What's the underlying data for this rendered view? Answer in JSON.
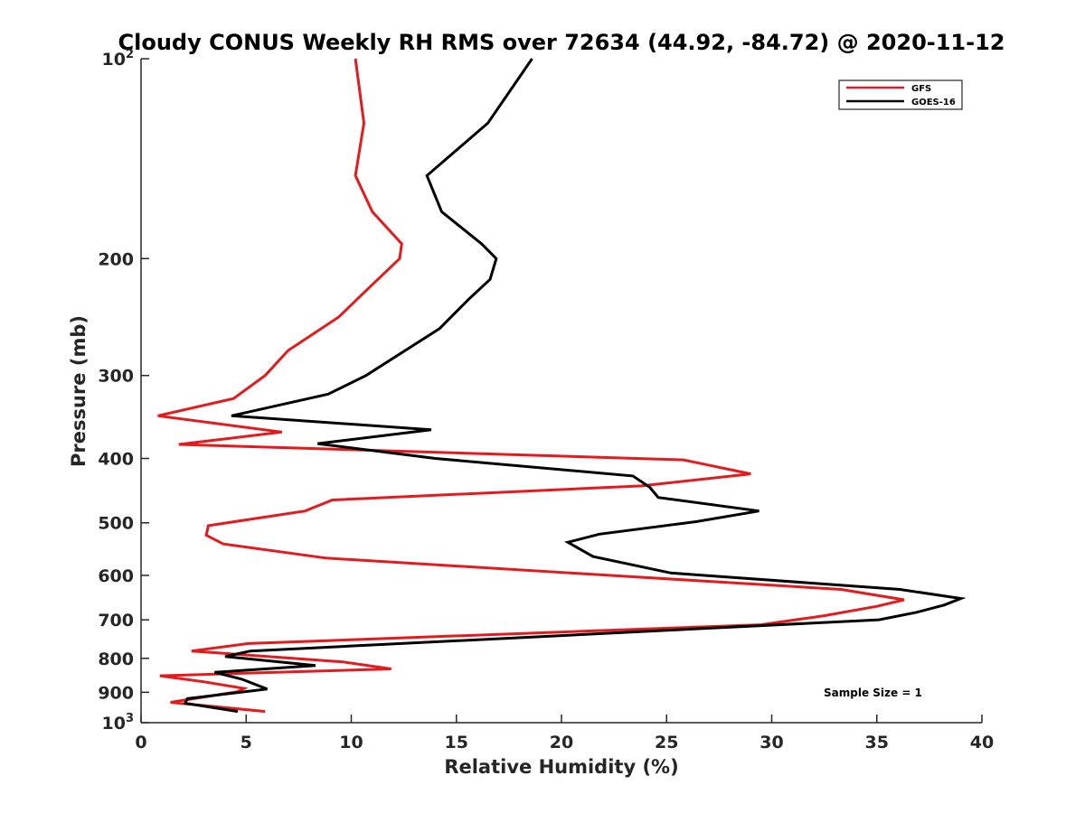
{
  "chart_data": {
    "type": "line",
    "title": "Cloudy CONUS Weekly RH RMS over 72634 (44.92, -84.72) @ 2020-11-12",
    "xlabel": "Relative Humidity (%)",
    "ylabel": "Pressure (mb)",
    "xlim": [
      0,
      40
    ],
    "ylim": [
      100,
      1000
    ],
    "y_scale": "log",
    "y_reversed": true,
    "grid": false,
    "legend_position": "top-right",
    "x_ticks": [
      0,
      5,
      10,
      15,
      20,
      25,
      30,
      35,
      40
    ],
    "x_tick_labels": [
      "0",
      "5",
      "10",
      "15",
      "20",
      "25",
      "30",
      "35",
      "40"
    ],
    "y_ticks": [
      {
        "value": 100,
        "base": "10",
        "exp": "2"
      },
      {
        "value": 200,
        "base": "200",
        "exp": ""
      },
      {
        "value": 300,
        "base": "300",
        "exp": ""
      },
      {
        "value": 400,
        "base": "400",
        "exp": ""
      },
      {
        "value": 500,
        "base": "500",
        "exp": ""
      },
      {
        "value": 600,
        "base": "600",
        "exp": ""
      },
      {
        "value": 700,
        "base": "700",
        "exp": ""
      },
      {
        "value": 800,
        "base": "800",
        "exp": ""
      },
      {
        "value": 900,
        "base": "900",
        "exp": ""
      },
      {
        "value": 1000,
        "base": "10",
        "exp": "3"
      }
    ],
    "series": [
      {
        "name": "GFS",
        "color": "#e41a1c",
        "points": [
          [
            10.2,
            100
          ],
          [
            10.6,
            125
          ],
          [
            10.2,
            150
          ],
          [
            11.0,
            170
          ],
          [
            12.4,
            190
          ],
          [
            12.3,
            200
          ],
          [
            10.6,
            225
          ],
          [
            9.4,
            245
          ],
          [
            7.0,
            275
          ],
          [
            5.9,
            300
          ],
          [
            4.4,
            325
          ],
          [
            0.8,
            345
          ],
          [
            6.7,
            365
          ],
          [
            1.8,
            381
          ],
          [
            25.8,
            402
          ],
          [
            29.0,
            422
          ],
          [
            23.8,
            440
          ],
          [
            9.1,
            462
          ],
          [
            7.8,
            480
          ],
          [
            3.2,
            505
          ],
          [
            3.1,
            522
          ],
          [
            3.9,
            538
          ],
          [
            8.8,
            565
          ],
          [
            33.3,
            630
          ],
          [
            36.3,
            653
          ],
          [
            35.0,
            668
          ],
          [
            32.5,
            690
          ],
          [
            29.5,
            712
          ],
          [
            5.1,
            760
          ],
          [
            2.4,
            780
          ],
          [
            9.6,
            810
          ],
          [
            11.9,
            830
          ],
          [
            0.9,
            850
          ],
          [
            3.0,
            868
          ],
          [
            4.9,
            888
          ],
          [
            4.6,
            898
          ],
          [
            1.4,
            932
          ],
          [
            5.9,
            962
          ]
        ]
      },
      {
        "name": "GOES-16",
        "color": "#000000",
        "points": [
          [
            18.6,
            100
          ],
          [
            16.5,
            125
          ],
          [
            13.6,
            150
          ],
          [
            14.3,
            170
          ],
          [
            16.2,
            190
          ],
          [
            16.9,
            200
          ],
          [
            16.6,
            215
          ],
          [
            15.6,
            230
          ],
          [
            14.2,
            255
          ],
          [
            10.7,
            300
          ],
          [
            8.9,
            320
          ],
          [
            4.3,
            345
          ],
          [
            13.8,
            362
          ],
          [
            8.4,
            380
          ],
          [
            14.0,
            400
          ],
          [
            23.4,
            425
          ],
          [
            24.2,
            442
          ],
          [
            24.6,
            458
          ],
          [
            29.4,
            480
          ],
          [
            26.4,
            498
          ],
          [
            21.8,
            520
          ],
          [
            20.3,
            535
          ],
          [
            21.5,
            562
          ],
          [
            25.2,
            595
          ],
          [
            36.1,
            630
          ],
          [
            39.0,
            650
          ],
          [
            38.2,
            665
          ],
          [
            36.9,
            682
          ],
          [
            35.1,
            700
          ],
          [
            5.2,
            780
          ],
          [
            4.0,
            795
          ],
          [
            8.3,
            820
          ],
          [
            3.5,
            840
          ],
          [
            4.8,
            860
          ],
          [
            6.0,
            890
          ],
          [
            2.2,
            920
          ],
          [
            2.1,
            935
          ],
          [
            4.6,
            962
          ]
        ]
      }
    ],
    "annotations": [
      {
        "text": "Sample Size = 1"
      }
    ]
  }
}
